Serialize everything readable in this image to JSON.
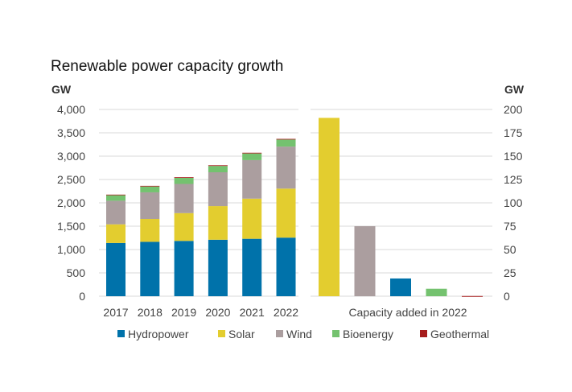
{
  "chart_data": [
    {
      "type": "bar",
      "stacked": true,
      "title": "Renewable power capacity growth",
      "ylabel": "GW",
      "ylim": [
        0,
        4000
      ],
      "yticks": [
        "0",
        "500",
        "1,000",
        "1,500",
        "2,000",
        "2,500",
        "3,000",
        "3,500",
        "4,000"
      ],
      "categories": [
        "2017",
        "2018",
        "2019",
        "2020",
        "2021",
        "2022"
      ],
      "series": [
        {
          "name": "Hydropower",
          "color": "#0072aa",
          "values": [
            1140,
            1165,
            1185,
            1210,
            1230,
            1255
          ]
        },
        {
          "name": "Solar",
          "color": "#e3cd2f",
          "values": [
            400,
            490,
            595,
            720,
            860,
            1050
          ]
        },
        {
          "name": "Wind",
          "color": "#ab9e9f",
          "values": [
            505,
            570,
            625,
            725,
            825,
            900
          ]
        },
        {
          "name": "Bioenergy",
          "color": "#74c26f",
          "values": [
            118,
            125,
            130,
            135,
            143,
            150
          ]
        },
        {
          "name": "Geothermal",
          "color": "#a61c1c",
          "values": [
            13,
            14,
            14,
            15,
            15,
            15
          ]
        }
      ],
      "legend_position": "bottom"
    },
    {
      "type": "bar",
      "xlabel": "Capacity added in 2022",
      "ylabel": "GW",
      "ylim": [
        0,
        200
      ],
      "yticks": [
        "0",
        "25",
        "50",
        "75",
        "100",
        "125",
        "150",
        "175",
        "200"
      ],
      "categories": [
        "Solar",
        "Wind",
        "Hydropower",
        "Bioenergy",
        "Geothermal"
      ],
      "values": [
        191,
        75,
        19,
        8,
        0.2
      ],
      "colors": [
        "#e3cd2f",
        "#ab9e9f",
        "#0072aa",
        "#74c26f",
        "#a61c1c"
      ]
    }
  ]
}
